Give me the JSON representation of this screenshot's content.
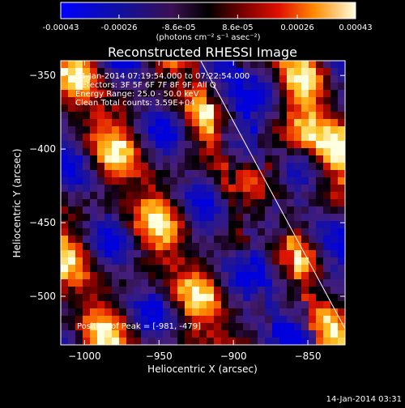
{
  "chart_data": {
    "type": "heatmap",
    "title": "Reconstructed RHESSI Image",
    "xlabel": "Heliocentric X (arcsec)",
    "ylabel": "Heliocentric Y (arcsec)",
    "xlim": [
      -1016,
      -825
    ],
    "ylim": [
      -533,
      -340
    ],
    "xticks": [
      -1000,
      -950,
      -900,
      -850
    ],
    "yticks": [
      -350,
      -400,
      -450,
      -500
    ],
    "colorbar": {
      "ticks": [
        -0.00043,
        -0.00026,
        -8.6e-05,
        8.6e-05,
        0.00026,
        0.00043
      ],
      "tick_labels": [
        "-0.00043",
        "-0.00026",
        "-8.6e-05",
        "8.6e-05",
        "0.00026",
        "0.00043"
      ],
      "unit_label": "(photons cm⁻² s⁻¹ asec⁻²)",
      "range": [
        -0.00043,
        0.00043
      ]
    },
    "annotations": {
      "time_range": "14-Jan-2014 07:19:54.000 to 07:22:54.000",
      "detectors": "Detectors: 3F 5F 6F 7F 8F 9F, All Q",
      "energy": "Energy Range: 25.0 - 50.0 keV",
      "method": "Clean   Total counts: 3.59E+04",
      "peak": "Position of Peak = [-981, -479]"
    },
    "limb_line": {
      "x": [
        -922,
        -825
      ],
      "y": [
        -340,
        -522
      ]
    },
    "grid": false
  },
  "footer": {
    "timestamp": "14-Jan-2014 03:31"
  }
}
